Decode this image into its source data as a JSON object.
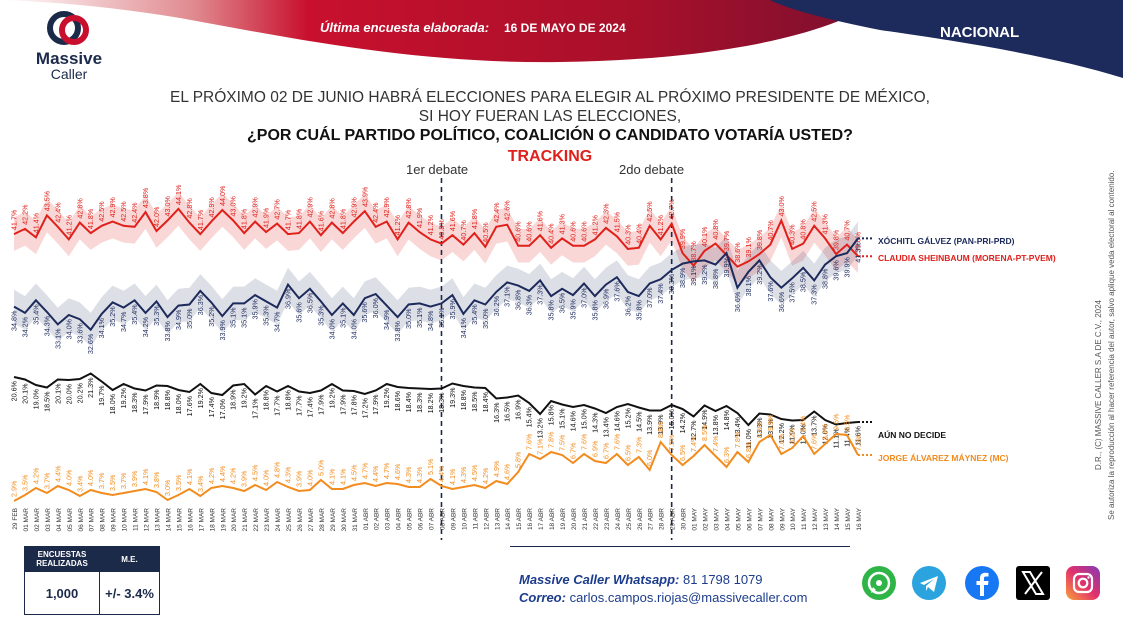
{
  "header": {
    "brand_line1": "Massive",
    "brand_line2": "Caller",
    "survey_label": "Última encuesta elaborada:",
    "survey_date": "16 DE MAYO DE 2024",
    "scope": "NACIONAL"
  },
  "question": {
    "line1": "EL PRÓXIMO 02 DE JUNIO HABRÁ ELECCIONES PARA ELEGIR AL PRÓXIMO PRESIDENTE DE MÉXICO,",
    "line2": "SI HOY FUERAN LAS ELECCIONES,",
    "line3": "¿POR CUÁL PARTIDO POLÍTICO, COALICIÓN O CANDIDATO VOTARÍA USTED?",
    "tracking": "TRACKING"
  },
  "debates": {
    "first": "1er debate",
    "second": "2do debate"
  },
  "stats": {
    "col1_head": "ENCUESTAS REALIZADAS",
    "col2_head": "M.E.",
    "col1_value": "1,000",
    "col2_value": "+/- 3.4%"
  },
  "contact": {
    "whatsapp_label": "Massive Caller Whatsapp:",
    "whatsapp_value": "81 1798 1079",
    "mail_label": "Correo:",
    "mail_value": "carlos.campos.riojas@massivecaller.com"
  },
  "social_icons": [
    "whatsapp-icon",
    "telegram-icon",
    "facebook-icon",
    "x-icon",
    "instagram-icon"
  ],
  "copyright": {
    "line1": "D.R., (C) MASSIVE CALLER S.A DE C.V., 2024",
    "line2": "Se autoriza la reproducción al hacer referencia del autor, salvo aplique veda electoral al contenido."
  },
  "colors": {
    "claudia": "#e0201b",
    "xochitl": "#1c2a5c",
    "aun": "#111111",
    "jorge": "#f28c1e",
    "banner": "#c8102e",
    "navy": "#1c2a4a"
  },
  "chart_data": {
    "type": "line",
    "title": "TRACKING",
    "x": [
      "29 FEB",
      "01 MAR",
      "02 MAR",
      "03 MAR",
      "04 MAR",
      "05 MAR",
      "06 MAR",
      "07 MAR",
      "08 MAR",
      "09 MAR",
      "10 MAR",
      "11 MAR",
      "12 MAR",
      "13 MAR",
      "14 MAR",
      "15 MAR",
      "16 MAR",
      "17 MAR",
      "18 MAR",
      "19 MAR",
      "20 MAR",
      "21 MAR",
      "22 MAR",
      "23 MAR",
      "24 MAR",
      "25 MAR",
      "26 MAR",
      "27 MAR",
      "28 MAR",
      "29 MAR",
      "30 MAR",
      "31 MAR",
      "01 ABR",
      "02 ABR",
      "03 ABR",
      "04 ABR",
      "05 ABR",
      "06 ABR",
      "07 ABR",
      "08 ABR",
      "09 ABR",
      "10 ABR",
      "11 ABR",
      "12 ABR",
      "13 ABR",
      "14 ABR",
      "15 ABR",
      "16 ABR",
      "17 ABR",
      "18 ABR",
      "19 ABR",
      "20 ABR",
      "21 ABR",
      "22 ABR",
      "23 ABR",
      "24 ABR",
      "25 ABR",
      "26 ABR",
      "27 ABR",
      "28 ABR",
      "29 ABR",
      "30 ABR",
      "01 MAY",
      "02 MAY",
      "03 MAY",
      "04 MAY",
      "05 MAY",
      "06 MAY",
      "07 MAY",
      "08 MAY",
      "09 MAY",
      "10 MAY",
      "11 MAY",
      "12 MAY",
      "13 MAY",
      "14 MAY",
      "15 MAY",
      "16 MAY"
    ],
    "debate_indices": [
      39,
      60
    ],
    "series": [
      {
        "name": "CLAUDIA SHEINBAUM (MORENA-PT-PVEM)",
        "values": [
          41.7,
          42.2,
          41.4,
          43.5,
          42.4,
          41.2,
          42.8,
          41.8,
          42.5,
          42.9,
          42.5,
          42.4,
          43.8,
          42.0,
          43.0,
          44.1,
          42.8,
          41.7,
          42.9,
          44.0,
          43.0,
          41.8,
          42.9,
          41.9,
          42.7,
          41.7,
          41.8,
          42.9,
          41.6,
          42.8,
          41.8,
          42.9,
          43.9,
          42.4,
          42.9,
          41.2,
          42.8,
          41.9,
          41.2,
          40.8,
          41.6,
          40.7,
          41.8,
          40.5,
          42.4,
          42.6,
          40.6,
          40.6,
          41.6,
          40.4,
          41.3,
          40.6,
          40.6,
          41.2,
          42.3,
          41.5,
          40.3,
          40.4,
          42.5,
          41.2,
          42.7,
          39.9,
          38.7,
          40.1,
          40.8,
          39.7,
          38.6,
          39.1,
          39.8,
          40.7,
          43.0,
          40.3,
          40.8,
          42.5,
          41.3,
          39.8,
          40.7,
          39.6
        ]
      },
      {
        "name": "XÓCHITL GÁLVEZ (PAN-PRI-PRD)",
        "values": [
          34.8,
          34.2,
          35.4,
          34.3,
          33.1,
          34.0,
          33.6,
          32.6,
          34.1,
          35.2,
          34.7,
          35.4,
          34.2,
          35.3,
          33.8,
          34.9,
          35.0,
          36.3,
          35.2,
          33.9,
          35.1,
          35.1,
          35.9,
          35.3,
          34.7,
          36.9,
          35.6,
          36.5,
          35.3,
          34.0,
          35.1,
          34.0,
          35.6,
          36.0,
          34.9,
          33.8,
          35.0,
          35.1,
          34.8,
          35.1,
          35.9,
          34.1,
          35.4,
          35.0,
          36.2,
          37.1,
          36.8,
          36.3,
          37.3,
          35.8,
          36.5,
          35.9,
          37.0,
          35.8,
          36.9,
          37.6,
          36.2,
          35.8,
          37.0,
          37.4,
          38.3,
          38.9,
          39.1,
          39.2,
          38.8,
          39.9,
          36.6,
          38.1,
          39.2,
          37.6,
          36.6,
          37.5,
          38.5,
          37.3,
          38.8,
          39.6,
          39.9,
          41.3
        ]
      },
      {
        "name": "AÚN NO DECIDE",
        "values": [
          20.6,
          20.1,
          19.0,
          18.5,
          20.1,
          20.0,
          20.2,
          21.3,
          19.7,
          18.0,
          19.2,
          18.3,
          17.9,
          18.9,
          18.8,
          18.0,
          17.6,
          19.2,
          17.4,
          17.0,
          18.9,
          19.2,
          17.1,
          18.8,
          17.7,
          18.8,
          17.7,
          17.4,
          17.9,
          19.2,
          17.9,
          17.8,
          17.2,
          17.9,
          19.2,
          18.6,
          18.4,
          18.3,
          18.2,
          18.3,
          19.3,
          18.8,
          18.5,
          18.4,
          16.3,
          16.5,
          16.9,
          15.4,
          13.2,
          15.8,
          15.1,
          14.6,
          15.0,
          14.3,
          13.4,
          14.6,
          15.2,
          14.5,
          13.9,
          13.9,
          15.0,
          14.2,
          12.7,
          14.9,
          13.8,
          14.8,
          13.4,
          11.0,
          13.3,
          13.1,
          12.2,
          11.9,
          12.0,
          13.7,
          12.0,
          11.1,
          11.4,
          11.6
        ]
      },
      {
        "name": "JORGE ÁLVAREZ MÁYNEZ (MC)",
        "values": [
          2.9,
          3.5,
          4.2,
          3.7,
          4.4,
          4.0,
          3.4,
          4.0,
          3.7,
          3.5,
          3.7,
          3.9,
          4.1,
          3.8,
          3.0,
          3.5,
          4.1,
          3.4,
          4.2,
          4.4,
          4.2,
          3.9,
          4.5,
          4.0,
          4.8,
          4.3,
          3.9,
          4.0,
          5.0,
          4.1,
          4.1,
          4.5,
          4.7,
          4.4,
          4.7,
          4.6,
          4.3,
          4.3,
          5.1,
          4.4,
          4.1,
          4.3,
          4.5,
          4.2,
          4.9,
          4.6,
          5.8,
          7.6,
          7.1,
          7.8,
          7.5,
          6.7,
          7.6,
          6.9,
          6.7,
          7.6,
          6.5,
          7.3,
          6.0,
          8.8,
          7.5,
          6.5,
          7.4,
          8.5,
          7.4,
          6.3,
          7.8,
          6.8,
          8.8,
          9.5,
          7.6,
          8.2,
          9.4,
          7.6,
          8.6,
          9.6,
          9.5,
          7.5
        ]
      }
    ],
    "ylim": [
      0,
      50
    ]
  }
}
